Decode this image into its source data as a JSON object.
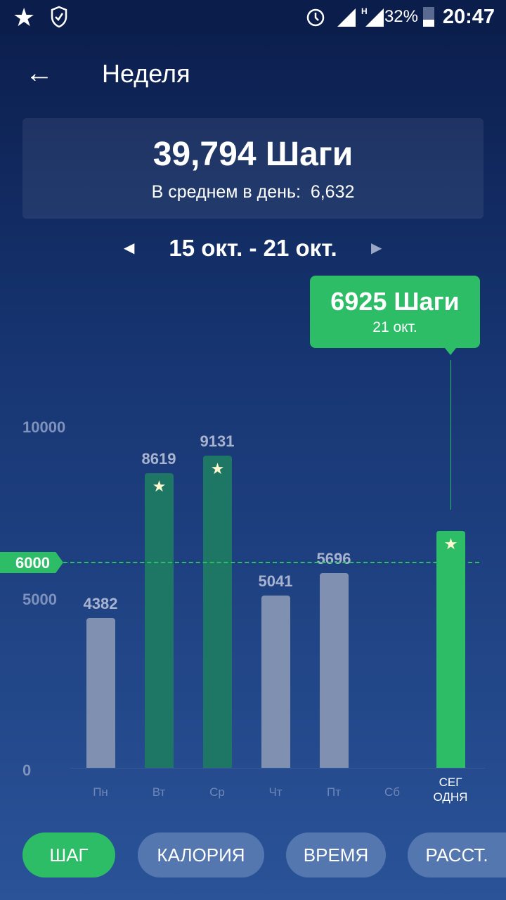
{
  "status_bar": {
    "time": "20:47",
    "battery": "32%",
    "icons": [
      "star-icon",
      "shield-check-icon",
      "alarm-icon",
      "signal-icon",
      "signal-h-icon",
      "battery-icon"
    ]
  },
  "header": {
    "title": "Неделя",
    "back_icon": "arrow-left-icon"
  },
  "summary": {
    "total": "39,794 Шаги",
    "avg_label": "В среднем в день:",
    "avg_value": "6,632"
  },
  "range": "15 окт. - 21 окт.",
  "tooltip": {
    "value": "6925 Шаги",
    "date": "21 окт."
  },
  "colors": {
    "goal_met": "#1e7764",
    "below": "#8090b0",
    "today": "#2dbd66"
  },
  "chart_data": {
    "type": "bar",
    "y_ticks": [
      "10000",
      "5000",
      "0"
    ],
    "ylim": [
      0,
      10000
    ],
    "goal": 6000,
    "goal_label": "6000",
    "categories": [
      "Пн",
      "Вт",
      "Ср",
      "Чт",
      "Пт",
      "Сб",
      "СЕГ ОДНЯ"
    ],
    "values": [
      4382,
      8619,
      9131,
      5041,
      5696,
      null,
      6925
    ],
    "value_labels": [
      "4382",
      "8619",
      "9131",
      "5041",
      "5696",
      "",
      ""
    ]
  },
  "tabs": [
    {
      "label": "ШАГ",
      "active": true
    },
    {
      "label": "КАЛОРИЯ"
    },
    {
      "label": "ВРЕМЯ"
    },
    {
      "label": "РАССТ."
    }
  ]
}
